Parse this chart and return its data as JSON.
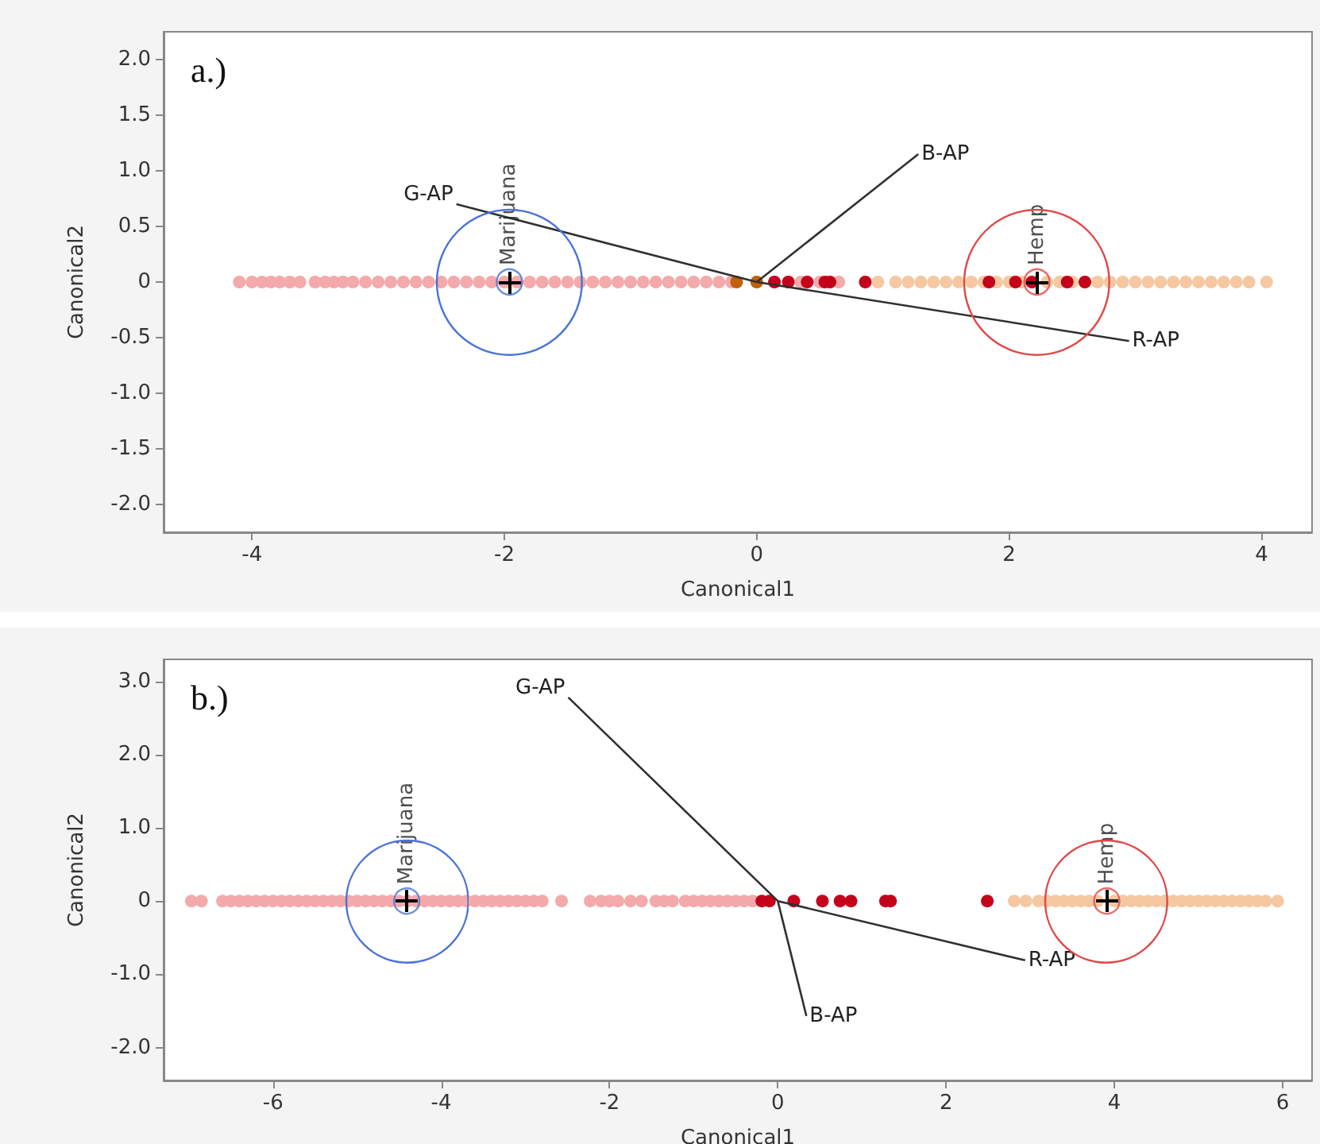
{
  "chart_data": [
    {
      "type": "scatter",
      "title": "a.)",
      "xlabel": "Canonical1",
      "ylabel": "Canonical2",
      "marker": "circle",
      "grid": false,
      "legend": false,
      "xlim": [
        -4.7,
        4.4
      ],
      "xticks": [
        -4,
        -2,
        0,
        2,
        4
      ],
      "ylim": [
        -2.25,
        2.25
      ],
      "yticks": [
        {
          "value": -2,
          "label": "-2.0"
        },
        {
          "value": -1.5,
          "label": "-1.5"
        },
        {
          "value": -1,
          "label": "-1.0"
        },
        {
          "value": -0.5,
          "label": "-0.5"
        },
        0,
        {
          "value": 0.5,
          "label": "0.5"
        },
        {
          "value": 1,
          "label": "1.0"
        },
        {
          "value": 1.5,
          "label": "1.5"
        },
        {
          "value": 2,
          "label": "2.0"
        }
      ],
      "series": [
        {
          "color": "#f4a9aa",
          "x": [
            -4.1,
            -4.0,
            -3.92,
            -3.85,
            -3.78,
            -3.7,
            -3.62,
            -3.5,
            -3.42,
            -3.35,
            -3.28,
            -3.2,
            -3.1,
            -3.0,
            -2.9,
            -2.8,
            -2.7,
            -2.6,
            -2.5,
            -2.4,
            -2.3,
            -2.2,
            -2.1,
            -2.0,
            -1.9,
            -1.8,
            -1.7,
            -1.6,
            -1.5,
            -1.4,
            -1.3,
            -1.2,
            -1.1,
            -1.0,
            -0.9,
            -0.8,
            -0.7,
            -0.6,
            -0.5,
            -0.4,
            -0.3,
            -0.2,
            0.35,
            0.5,
            0.65
          ],
          "values": [
            0,
            0,
            0,
            0,
            0,
            0,
            0,
            0,
            0,
            0,
            0,
            0,
            0,
            0,
            0,
            0,
            0,
            0,
            0,
            0,
            0,
            0,
            0,
            0,
            0,
            0,
            0,
            0,
            0,
            0,
            0,
            0,
            0,
            0,
            0,
            0,
            0,
            0,
            0,
            0,
            0,
            0,
            0,
            0,
            0
          ]
        },
        {
          "color": "#f5c8a2",
          "x": [
            0.96,
            1.1,
            1.2,
            1.3,
            1.4,
            1.5,
            1.6,
            1.7,
            1.8,
            1.9,
            2.0,
            2.1,
            2.3,
            2.4,
            2.5,
            2.7,
            2.8,
            2.9,
            3.0,
            3.1,
            3.2,
            3.3,
            3.4,
            3.5,
            3.6,
            3.7,
            3.8,
            3.9,
            4.04
          ],
          "values": [
            0,
            0,
            0,
            0,
            0,
            0,
            0,
            0,
            0,
            0,
            0,
            0,
            0,
            0,
            0,
            0,
            0,
            0,
            0,
            0,
            0,
            0,
            0,
            0,
            0,
            0,
            0,
            0,
            0
          ]
        },
        {
          "color": "#c4001a",
          "x": [
            0.14,
            0.25,
            0.4,
            0.54,
            0.58,
            0.86,
            1.84,
            2.05,
            2.18,
            2.46,
            2.6
          ],
          "values": [
            0,
            0,
            0,
            0,
            0,
            0,
            0,
            0,
            0,
            0,
            0
          ]
        },
        {
          "color": "#c0600a",
          "x": [
            -0.16,
            0.0
          ],
          "values": [
            0,
            0
          ]
        },
        {
          "name": "Marijuana",
          "color": "#4a72d8",
          "x": [
            -1.96
          ],
          "values": [
            0
          ]
        },
        {
          "name": "Hemp",
          "color": "#e04848",
          "x": [
            2.22
          ],
          "values": [
            0
          ]
        },
        {
          "type": "line",
          "name": "G-AP",
          "color": "#303030",
          "marker": "none",
          "x": [
            0,
            -2.38
          ],
          "values": [
            0,
            0.7
          ]
        },
        {
          "type": "line",
          "name": "B-AP",
          "color": "#303030",
          "marker": "none",
          "x": [
            0,
            1.28
          ],
          "values": [
            0,
            1.15
          ]
        },
        {
          "type": "line",
          "name": "R-AP",
          "color": "#303030",
          "marker": "none",
          "x": [
            0,
            2.95
          ],
          "values": [
            0,
            -0.53
          ]
        }
      ]
    },
    {
      "type": "scatter",
      "title": "b.)",
      "xlabel": "Canonical1",
      "ylabel": "Canonical2",
      "marker": "circle",
      "grid": false,
      "legend": false,
      "xlim": [
        -7.3,
        6.35
      ],
      "xticks": [
        -6,
        -4,
        -2,
        0,
        2,
        4,
        6
      ],
      "ylim": [
        -2.45,
        3.3
      ],
      "yticks": [
        {
          "value": -2,
          "label": "-2.0"
        },
        {
          "value": -1,
          "label": "-1.0"
        },
        0,
        {
          "value": 1,
          "label": "1.0"
        },
        {
          "value": 2,
          "label": "2.0"
        },
        {
          "value": 3,
          "label": "3.0"
        }
      ],
      "series": [
        {
          "color": "#f4a9aa",
          "x": [
            -6.97,
            -6.85,
            -6.6,
            -6.5,
            -6.4,
            -6.3,
            -6.2,
            -6.1,
            -6.0,
            -5.9,
            -5.8,
            -5.7,
            -5.6,
            -5.5,
            -5.4,
            -5.3,
            -5.2,
            -5.1,
            -5.0,
            -4.9,
            -4.8,
            -4.7,
            -4.6,
            -4.5,
            -4.4,
            -4.3,
            -4.2,
            -4.1,
            -4.0,
            -3.9,
            -3.8,
            -3.7,
            -3.6,
            -3.5,
            -3.4,
            -3.3,
            -3.2,
            -3.1,
            -3.0,
            -2.9,
            -2.8,
            -2.57,
            -2.23,
            -2.1,
            -2.0,
            -1.9,
            -1.75,
            -1.62,
            -1.45,
            -1.35,
            -1.25,
            -1.1,
            -1.0,
            -0.9,
            -0.8,
            -0.7,
            -0.6,
            -0.5,
            -0.4,
            -0.3
          ],
          "values": [
            0,
            0,
            0,
            0,
            0,
            0,
            0,
            0,
            0,
            0,
            0,
            0,
            0,
            0,
            0,
            0,
            0,
            0,
            0,
            0,
            0,
            0,
            0,
            0,
            0,
            0,
            0,
            0,
            0,
            0,
            0,
            0,
            0,
            0,
            0,
            0,
            0,
            0,
            0,
            0,
            0,
            0,
            0,
            0,
            0,
            0,
            0,
            0,
            0,
            0,
            0,
            0,
            0,
            0,
            0,
            0,
            0,
            0,
            0,
            0
          ]
        },
        {
          "color": "#f5c8a2",
          "x": [
            2.81,
            2.95,
            3.1,
            3.2,
            3.3,
            3.4,
            3.5,
            3.6,
            3.7,
            3.8,
            4.0,
            4.1,
            4.2,
            4.3,
            4.4,
            4.5,
            4.6,
            4.7,
            4.8,
            4.9,
            5.0,
            5.1,
            5.2,
            5.3,
            5.4,
            5.5,
            5.6,
            5.7,
            5.8,
            5.94
          ],
          "values": [
            0,
            0,
            0,
            0,
            0,
            0,
            0,
            0,
            0,
            0,
            0,
            0,
            0,
            0,
            0,
            0,
            0,
            0,
            0,
            0,
            0,
            0,
            0,
            0,
            0,
            0,
            0,
            0,
            0,
            0
          ]
        },
        {
          "color": "#c4001a",
          "x": [
            -0.19,
            -0.1,
            0.19,
            0.53,
            0.74,
            0.87,
            1.28,
            1.34,
            2.49
          ],
          "values": [
            0,
            0,
            0,
            0,
            0,
            0,
            0,
            0,
            0
          ]
        },
        {
          "name": "Marijuana",
          "color": "#4a72d8",
          "x": [
            -4.41
          ],
          "values": [
            0
          ]
        },
        {
          "name": "Hemp",
          "color": "#e04848",
          "x": [
            3.91
          ],
          "values": [
            0
          ]
        },
        {
          "type": "line",
          "name": "G-AP",
          "color": "#303030",
          "marker": "none",
          "x": [
            0,
            -2.49
          ],
          "values": [
            0,
            2.78
          ]
        },
        {
          "type": "line",
          "name": "B-AP",
          "color": "#303030",
          "marker": "none",
          "x": [
            0,
            0.34
          ],
          "values": [
            0,
            -1.57
          ]
        },
        {
          "type": "line",
          "name": "R-AP",
          "color": "#303030",
          "marker": "none",
          "x": [
            0,
            2.94
          ],
          "values": [
            0,
            -0.81
          ]
        }
      ]
    }
  ]
}
